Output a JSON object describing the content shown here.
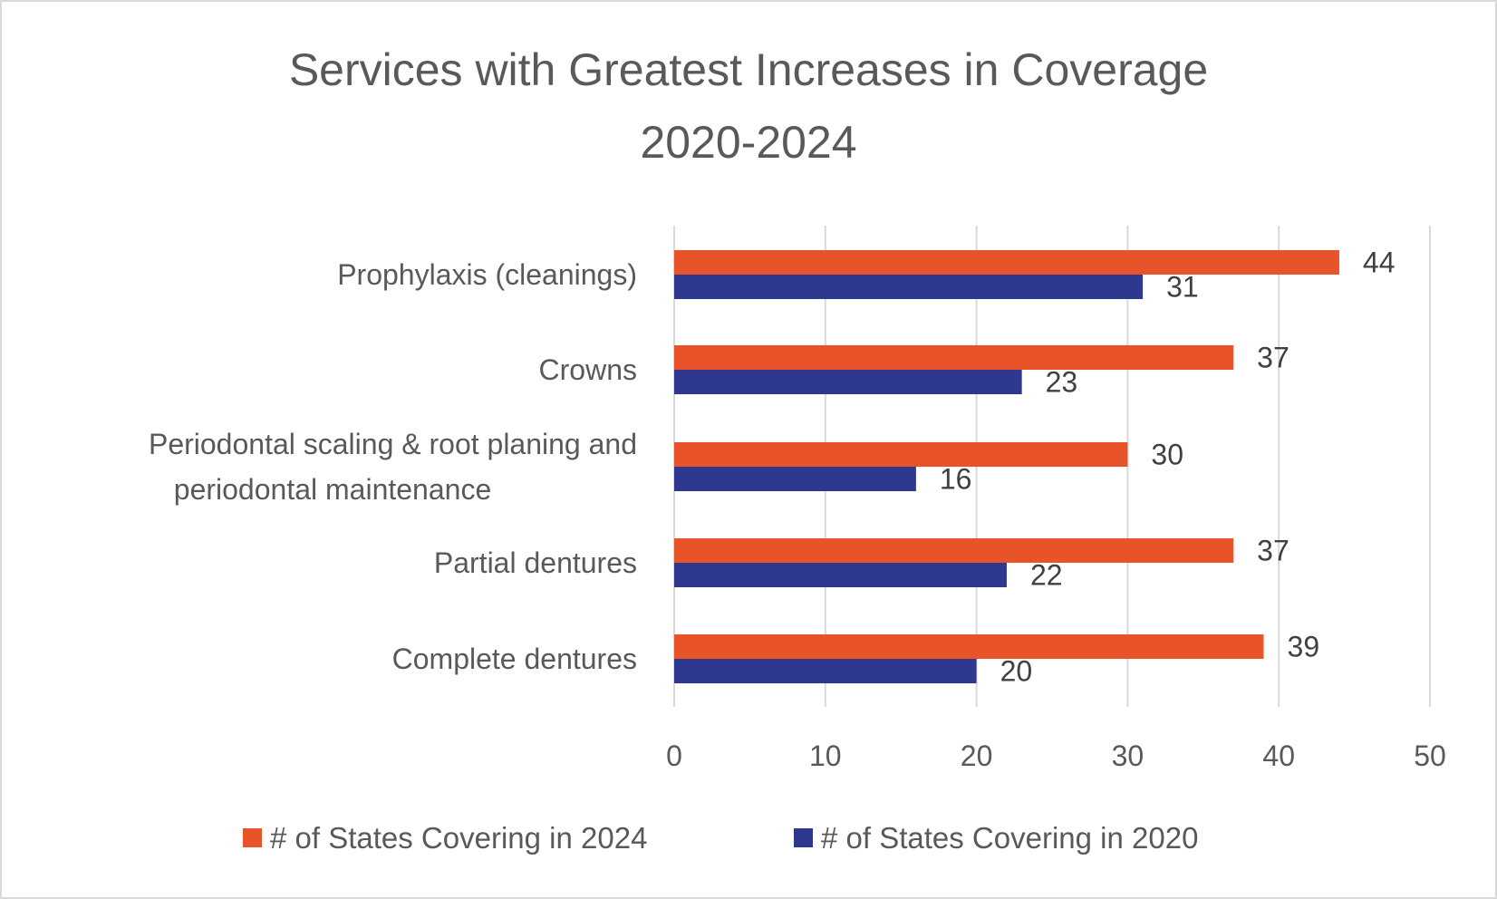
{
  "chart_data": {
    "type": "bar",
    "orientation": "horizontal",
    "title": "Services with Greatest Increases in Coverage 2020-2024",
    "title_lines": [
      "Services with Greatest Increases in Coverage",
      "2020-2024"
    ],
    "categories": [
      "Prophylaxis (cleanings)",
      "Crowns",
      "Periodontal scaling & root planing and periodontal maintenance",
      "Partial dentures",
      "Complete dentures"
    ],
    "category_lines": [
      [
        "Prophylaxis (cleanings)"
      ],
      [
        "Crowns"
      ],
      [
        "Periodontal scaling & root planing and",
        "periodontal maintenance"
      ],
      [
        "Partial dentures"
      ],
      [
        "Complete dentures"
      ]
    ],
    "series": [
      {
        "name": "# of States Covering in 2024",
        "color": "#E8532A",
        "values": [
          44,
          37,
          30,
          37,
          39
        ]
      },
      {
        "name": "# of States Covering in 2020",
        "color": "#2E388E",
        "values": [
          31,
          23,
          16,
          22,
          20
        ]
      }
    ],
    "xlabel": "",
    "ylabel": "",
    "xlim": [
      0,
      50
    ],
    "xticks": [
      0,
      10,
      20,
      30,
      40,
      50
    ],
    "grid": true,
    "data_labels": true,
    "legend_position": "bottom"
  }
}
